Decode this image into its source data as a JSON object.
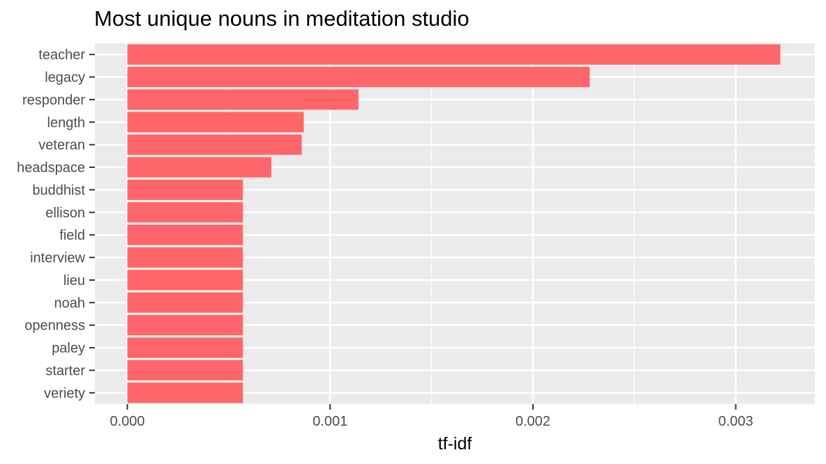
{
  "chart_data": {
    "type": "bar",
    "orientation": "horizontal",
    "title": "Most unique nouns in meditation studio",
    "xlabel": "tf-idf",
    "ylabel": "",
    "categories": [
      "teacher",
      "legacy",
      "responder",
      "length",
      "veteran",
      "headspace",
      "buddhist",
      "ellison",
      "field",
      "interview",
      "lieu",
      "noah",
      "openness",
      "paley",
      "starter",
      "veriety"
    ],
    "values": [
      0.00322,
      0.00228,
      0.00114,
      0.00087,
      0.00086,
      0.00071,
      0.00057,
      0.00057,
      0.00057,
      0.00057,
      0.00057,
      0.00057,
      0.00057,
      0.00057,
      0.00057,
      0.00057
    ],
    "xlim": [
      -0.00016,
      0.00339
    ],
    "x_ticks": [
      0,
      0.001,
      0.002,
      0.003
    ],
    "x_tick_labels": [
      "0.000",
      "0.001",
      "0.002",
      "0.003"
    ],
    "grid": true,
    "legend": "none",
    "colors": {
      "bar": "#ff666b",
      "panel_background": "#ebebeb",
      "grid": "#ffffff",
      "tick_text": "#4d4d4d",
      "tick_mark": "#333333"
    }
  }
}
